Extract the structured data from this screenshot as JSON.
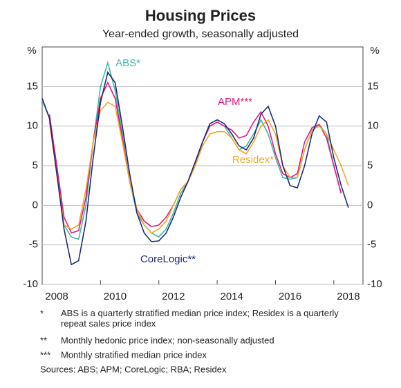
{
  "chart_data": {
    "type": "line",
    "title": "Housing Prices",
    "subtitle": "Year-ended growth, seasonally adjusted",
    "y_unit": "%",
    "xlim": [
      2008,
      2019
    ],
    "ylim": [
      -10,
      20
    ],
    "xticks": [
      {
        "value": 2008.5,
        "label": "2008"
      },
      {
        "value": 2010.5,
        "label": "2010"
      },
      {
        "value": 2012.5,
        "label": "2012"
      },
      {
        "value": 2014.5,
        "label": "2014"
      },
      {
        "value": 2016.5,
        "label": "2016"
      },
      {
        "value": 2018.5,
        "label": "2018"
      }
    ],
    "yticks": [
      -10,
      -5,
      0,
      5,
      10,
      15
    ],
    "grid": true,
    "x": [
      2008,
      2008.25,
      2008.5,
      2008.75,
      2009,
      2009.25,
      2009.5,
      2009.75,
      2010,
      2010.25,
      2010.5,
      2010.75,
      2011,
      2011.25,
      2011.5,
      2011.75,
      2012,
      2012.25,
      2012.5,
      2012.75,
      2013,
      2013.25,
      2013.5,
      2013.75,
      2014,
      2014.25,
      2014.5,
      2014.75,
      2015,
      2015.25,
      2015.5,
      2015.75,
      2016,
      2016.25,
      2016.5,
      2016.75,
      2017,
      2017.25,
      2017.5,
      2017.75,
      2018,
      2018.25,
      2018.5
    ],
    "series": [
      {
        "name": "ABS*",
        "color": "#3db9a6",
        "values": [
          13.3,
          11,
          5,
          -2.5,
          -4,
          -4.3,
          0,
          8,
          15,
          18,
          14.5,
          9,
          3,
          -1,
          -2.5,
          -3.5,
          -4,
          -3,
          -1,
          1.5,
          3,
          5,
          8,
          10,
          10.5,
          10,
          8.5,
          7,
          7.5,
          9,
          10.8,
          9,
          6,
          3.5,
          3.3,
          3.5,
          7,
          9.5,
          10.2,
          9,
          5,
          1.5,
          null
        ]
      },
      {
        "name": "APM***",
        "color": "#e0197d",
        "values": [
          null,
          11.5,
          5,
          -1.5,
          -3.5,
          -3.2,
          1,
          8,
          13.5,
          15.5,
          13.5,
          8.5,
          3,
          -0.5,
          -2,
          -2.7,
          -2.5,
          -1.5,
          0,
          2,
          3,
          5.5,
          8,
          10,
          10.5,
          10,
          9.5,
          8.5,
          8.8,
          10.5,
          11.8,
          10,
          6.5,
          4,
          3.5,
          4,
          8,
          9.8,
          10.2,
          8.5,
          5,
          1.5,
          null
        ]
      },
      {
        "name": "Residex*",
        "color": "#f5a623",
        "values": [
          null,
          10.5,
          4,
          -2.5,
          -3,
          -2.5,
          2,
          8,
          12,
          13,
          12.5,
          8,
          3,
          -0.5,
          -2.5,
          -3.5,
          -3,
          -2,
          0,
          2,
          3,
          5,
          7.5,
          9,
          9.3,
          9.3,
          8.5,
          7,
          6.5,
          8,
          10,
          10.8,
          9,
          5,
          3.5,
          3.5,
          7,
          9.5,
          10,
          9,
          7,
          5,
          2.5
        ]
      },
      {
        "name": "CoreLogic**",
        "color": "#1b2a78",
        "values": [
          13.5,
          11,
          4,
          -3,
          -7.5,
          -7,
          -2,
          6,
          13,
          16.8,
          15.5,
          10,
          4,
          -1,
          -3.5,
          -4.6,
          -4.5,
          -3.5,
          -1.5,
          1,
          3,
          5.5,
          8,
          10.3,
          10.8,
          10.3,
          9,
          7.5,
          7,
          8.5,
          11.5,
          12.5,
          10,
          5,
          2.5,
          2.2,
          5,
          9,
          11.3,
          10.5,
          6,
          2.5,
          -0.3
        ]
      }
    ],
    "notes": [
      {
        "marker": "*",
        "text": "ABS is a quarterly stratified median price index; Residex is a quarterly repeat sales price index"
      },
      {
        "marker": "**",
        "text": "Monthly hedonic price index; non-seasonally adjusted"
      },
      {
        "marker": "***",
        "text": "Monthly stratified median price index"
      }
    ],
    "source": "Sources: ABS; APM; CoreLogic; RBA; Residex"
  }
}
